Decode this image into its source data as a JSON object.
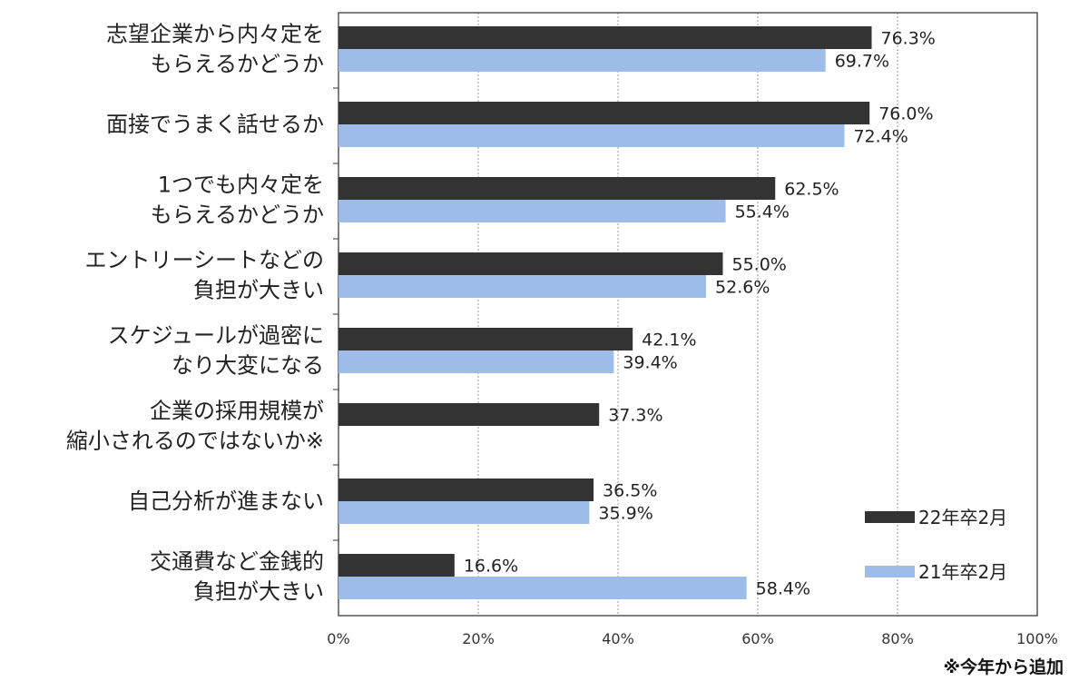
{
  "chart_data": {
    "type": "bar",
    "orientation": "horizontal",
    "categories": [
      [
        "志望企業から内々定を",
        "もらえるかどうか"
      ],
      [
        "面接でうまく話せるか"
      ],
      [
        "1つでも内々定を",
        "もらえるかどうか"
      ],
      [
        "エントリーシートなどの",
        "負担が大きい"
      ],
      [
        "スケジュールが過密に",
        "なり大変になる"
      ],
      [
        "企業の採用規模が",
        "縮小されるのではないか※"
      ],
      [
        "自己分析が進まない"
      ],
      [
        "交通費など金銭的",
        "負担が大きい"
      ]
    ],
    "series": [
      {
        "name": "22年卒2月",
        "color": "#333333",
        "values": [
          76.3,
          76.0,
          62.5,
          55.0,
          42.1,
          37.3,
          36.5,
          16.6
        ],
        "labels": [
          "76.3%",
          "76.0%",
          "62.5%",
          "55.0%",
          "42.1%",
          "37.3%",
          "36.5%",
          "16.6%"
        ]
      },
      {
        "name": "21年卒2月",
        "color": "#9dbde8",
        "values": [
          69.7,
          72.4,
          55.4,
          52.6,
          39.4,
          null,
          35.9,
          58.4
        ],
        "labels": [
          "69.7%",
          "72.4%",
          "55.4%",
          "52.6%",
          "39.4%",
          null,
          "35.9%",
          "58.4%"
        ]
      }
    ],
    "xlim": [
      0,
      100
    ],
    "xticks": [
      "0%",
      "20%",
      "40%",
      "60%",
      "80%",
      "100%"
    ],
    "grid": "vertical-gridlines",
    "legend_position": "bottom-right",
    "footnote": "※今年から追加"
  }
}
